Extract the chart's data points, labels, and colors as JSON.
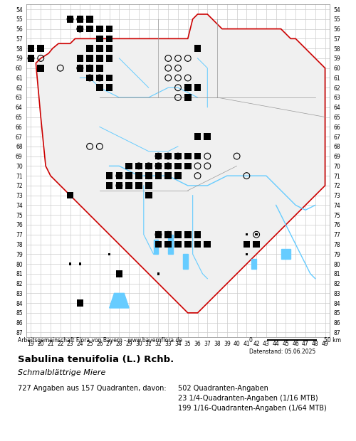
{
  "title_bold": "Sabulina tenuifolia (L.) Rchb.",
  "title_italic": "Schmalblättrige Miere",
  "attribution": "Arbeitsgemeinschaft Flora von Bayern - www.bayernflora.de",
  "scale_label": "0          50 km",
  "date_label": "Datenstand: 05.06.2025",
  "stats_line1": "727 Angaben aus 157 Quadranten, davon:",
  "stats_col2_line1": "502 Quadranten-Angaben",
  "stats_col2_line2": "23 1/4-Quadranten-Angaben (1/16 MTB)",
  "stats_col2_line3": "199 1/16-Quadranten-Angaben (1/64 MTB)",
  "x_min": 19,
  "x_max": 49,
  "y_min": 54,
  "y_max": 87,
  "bg_color": "#ffffff",
  "grid_color": "#cccccc",
  "border_color": "#cc0000",
  "inner_border_color": "#888888",
  "river_color": "#66ccff",
  "lake_color": "#66ccff",
  "filled_square_color": "#000000",
  "open_circle_color": "#000000",
  "filled_circle_color": "#000000",
  "small_square_color": "#000000",
  "map_fill": "#f5f5f5",
  "filled_squares": [
    [
      23,
      55
    ],
    [
      24,
      55
    ],
    [
      25,
      55
    ],
    [
      24,
      56
    ],
    [
      25,
      56
    ],
    [
      26,
      56
    ],
    [
      27,
      56
    ],
    [
      26,
      57
    ],
    [
      27,
      57
    ],
    [
      19,
      58
    ],
    [
      20,
      58
    ],
    [
      25,
      58
    ],
    [
      26,
      58
    ],
    [
      27,
      58
    ],
    [
      36,
      58
    ],
    [
      19,
      59
    ],
    [
      24,
      59
    ],
    [
      25,
      59
    ],
    [
      26,
      59
    ],
    [
      27,
      59
    ],
    [
      20,
      60
    ],
    [
      24,
      60
    ],
    [
      25,
      60
    ],
    [
      26,
      60
    ],
    [
      25,
      61
    ],
    [
      26,
      61
    ],
    [
      27,
      61
    ],
    [
      26,
      62
    ],
    [
      27,
      62
    ],
    [
      35,
      62
    ],
    [
      36,
      62
    ],
    [
      35,
      63
    ],
    [
      36,
      67
    ],
    [
      37,
      67
    ],
    [
      32,
      69
    ],
    [
      33,
      69
    ],
    [
      34,
      69
    ],
    [
      35,
      69
    ],
    [
      36,
      69
    ],
    [
      29,
      70
    ],
    [
      30,
      70
    ],
    [
      31,
      70
    ],
    [
      32,
      70
    ],
    [
      33,
      70
    ],
    [
      34,
      70
    ],
    [
      35,
      70
    ],
    [
      27,
      71
    ],
    [
      28,
      71
    ],
    [
      29,
      71
    ],
    [
      30,
      71
    ],
    [
      31,
      71
    ],
    [
      32,
      71
    ],
    [
      33,
      71
    ],
    [
      34,
      71
    ],
    [
      27,
      72
    ],
    [
      28,
      72
    ],
    [
      29,
      72
    ],
    [
      30,
      72
    ],
    [
      31,
      72
    ],
    [
      23,
      73
    ],
    [
      31,
      73
    ],
    [
      32,
      77
    ],
    [
      33,
      77
    ],
    [
      34,
      77
    ],
    [
      35,
      77
    ],
    [
      36,
      77
    ],
    [
      32,
      78
    ],
    [
      33,
      78
    ],
    [
      34,
      78
    ],
    [
      35,
      78
    ],
    [
      36,
      78
    ],
    [
      37,
      78
    ],
    [
      41,
      78
    ],
    [
      42,
      78
    ],
    [
      28,
      81
    ],
    [
      24,
      84
    ]
  ],
  "open_circles": [
    [
      19,
      59
    ],
    [
      20,
      59
    ],
    [
      22,
      60
    ],
    [
      25,
      61
    ],
    [
      25,
      68
    ],
    [
      26,
      68
    ],
    [
      33,
      59
    ],
    [
      34,
      59
    ],
    [
      35,
      59
    ],
    [
      33,
      60
    ],
    [
      34,
      60
    ],
    [
      33,
      61
    ],
    [
      34,
      61
    ],
    [
      35,
      61
    ],
    [
      34,
      62
    ],
    [
      35,
      62
    ],
    [
      34,
      63
    ],
    [
      36,
      70
    ],
    [
      37,
      70
    ],
    [
      36,
      71
    ],
    [
      41,
      71
    ],
    [
      37,
      69
    ],
    [
      40,
      69
    ],
    [
      32,
      77
    ],
    [
      33,
      77
    ],
    [
      42,
      77
    ]
  ],
  "filled_circles": [
    [
      23,
      55
    ],
    [
      24,
      55
    ],
    [
      24,
      56
    ],
    [
      25,
      58
    ],
    [
      26,
      58
    ],
    [
      25,
      59
    ],
    [
      26,
      59
    ],
    [
      24,
      60
    ],
    [
      25,
      60
    ],
    [
      26,
      61
    ],
    [
      32,
      69
    ],
    [
      33,
      69
    ],
    [
      34,
      69
    ],
    [
      30,
      70
    ],
    [
      31,
      70
    ],
    [
      32,
      70
    ],
    [
      33,
      70
    ],
    [
      28,
      71
    ],
    [
      29,
      71
    ],
    [
      30,
      71
    ],
    [
      31,
      71
    ],
    [
      28,
      72
    ],
    [
      29,
      72
    ]
  ],
  "small_squares": [
    [
      27,
      79
    ],
    [
      41,
      77
    ],
    [
      42,
      77
    ],
    [
      23,
      80
    ],
    [
      24,
      80
    ],
    [
      28,
      81
    ],
    [
      24,
      84
    ],
    [
      32,
      81
    ],
    [
      41,
      79
    ]
  ],
  "plus_marks": [
    [
      32,
      69
    ]
  ],
  "bavaria_outer": [
    [
      19.5,
      58.2
    ],
    [
      19.8,
      59.0
    ],
    [
      19.5,
      59.5
    ],
    [
      19.8,
      60.2
    ],
    [
      20.5,
      60.0
    ],
    [
      21.0,
      60.5
    ],
    [
      21.5,
      60.0
    ],
    [
      21.8,
      60.8
    ],
    [
      22.0,
      61.0
    ],
    [
      22.5,
      60.5
    ],
    [
      23.0,
      61.0
    ],
    [
      23.5,
      60.8
    ],
    [
      24.0,
      61.5
    ],
    [
      24.5,
      61.0
    ],
    [
      25.0,
      61.5
    ],
    [
      25.5,
      61.0
    ],
    [
      26.0,
      62.0
    ],
    [
      26.5,
      62.5
    ],
    [
      26.5,
      63.0
    ],
    [
      26.8,
      63.5
    ],
    [
      26.5,
      64.0
    ],
    [
      26.8,
      64.5
    ],
    [
      26.5,
      65.0
    ],
    [
      26.8,
      65.5
    ],
    [
      26.5,
      66.0
    ],
    [
      26.8,
      66.5
    ],
    [
      27.0,
      67.0
    ],
    [
      27.5,
      67.5
    ],
    [
      27.5,
      68.0
    ],
    [
      28.0,
      68.5
    ],
    [
      28.5,
      69.0
    ],
    [
      28.5,
      70.0
    ],
    [
      28.5,
      71.0
    ],
    [
      28.0,
      72.0
    ],
    [
      27.5,
      73.0
    ],
    [
      27.0,
      74.0
    ],
    [
      27.0,
      75.0
    ],
    [
      27.0,
      76.0
    ],
    [
      27.5,
      77.0
    ],
    [
      27.5,
      78.0
    ],
    [
      27.5,
      79.0
    ],
    [
      27.5,
      80.0
    ],
    [
      27.5,
      81.0
    ],
    [
      27.5,
      82.0
    ],
    [
      27.5,
      83.0
    ],
    [
      27.5,
      84.0
    ],
    [
      27.5,
      85.0
    ],
    [
      28.0,
      85.5
    ],
    [
      28.5,
      86.0
    ],
    [
      29.0,
      86.5
    ],
    [
      30.0,
      86.5
    ],
    [
      31.0,
      86.5
    ],
    [
      32.0,
      86.5
    ],
    [
      33.0,
      86.0
    ],
    [
      34.0,
      86.0
    ],
    [
      35.0,
      86.5
    ],
    [
      36.0,
      86.5
    ],
    [
      37.0,
      86.0
    ],
    [
      38.0,
      85.5
    ],
    [
      39.0,
      85.0
    ],
    [
      40.0,
      84.5
    ],
    [
      41.0,
      84.0
    ],
    [
      42.0,
      83.5
    ],
    [
      43.0,
      83.0
    ],
    [
      44.0,
      82.5
    ],
    [
      45.0,
      82.0
    ],
    [
      45.5,
      81.5
    ],
    [
      46.0,
      81.0
    ],
    [
      46.5,
      80.5
    ],
    [
      47.0,
      80.0
    ],
    [
      47.5,
      79.5
    ],
    [
      48.0,
      79.0
    ],
    [
      48.5,
      78.5
    ],
    [
      49.0,
      78.0
    ],
    [
      49.0,
      77.0
    ],
    [
      49.0,
      76.0
    ],
    [
      49.0,
      75.0
    ],
    [
      49.0,
      74.0
    ],
    [
      49.0,
      73.0
    ],
    [
      49.0,
      72.0
    ],
    [
      49.0,
      71.0
    ],
    [
      49.0,
      70.0
    ],
    [
      49.0,
      69.0
    ],
    [
      49.0,
      68.0
    ],
    [
      48.5,
      67.5
    ],
    [
      48.0,
      67.0
    ],
    [
      47.5,
      66.5
    ],
    [
      47.0,
      66.0
    ],
    [
      46.5,
      65.5
    ],
    [
      46.0,
      65.0
    ],
    [
      45.5,
      64.5
    ],
    [
      45.0,
      64.0
    ],
    [
      44.5,
      63.5
    ],
    [
      44.0,
      63.0
    ],
    [
      43.5,
      62.5
    ],
    [
      43.0,
      62.0
    ],
    [
      42.5,
      61.5
    ],
    [
      42.0,
      61.0
    ],
    [
      41.5,
      60.5
    ],
    [
      41.0,
      60.0
    ],
    [
      40.5,
      59.5
    ],
    [
      40.0,
      59.0
    ],
    [
      39.5,
      58.5
    ],
    [
      39.0,
      58.0
    ],
    [
      38.5,
      57.5
    ],
    [
      38.0,
      57.0
    ],
    [
      37.5,
      56.5
    ],
    [
      37.0,
      56.0
    ],
    [
      36.5,
      55.5
    ],
    [
      36.0,
      55.0
    ],
    [
      35.5,
      54.5
    ],
    [
      35.0,
      54.2
    ],
    [
      34.5,
      54.5
    ],
    [
      34.0,
      55.0
    ],
    [
      33.5,
      55.0
    ],
    [
      33.0,
      55.0
    ],
    [
      32.5,
      55.0
    ],
    [
      32.0,
      55.0
    ],
    [
      31.5,
      55.0
    ],
    [
      31.0,
      55.0
    ],
    [
      30.5,
      55.0
    ],
    [
      30.0,
      55.0
    ],
    [
      29.5,
      55.0
    ],
    [
      29.0,
      55.0
    ],
    [
      28.5,
      55.0
    ],
    [
      28.0,
      55.0
    ],
    [
      27.5,
      55.0
    ],
    [
      27.0,
      55.0
    ],
    [
      26.5,
      55.0
    ],
    [
      26.0,
      55.0
    ],
    [
      25.5,
      55.0
    ],
    [
      25.0,
      55.0
    ],
    [
      24.5,
      55.0
    ],
    [
      24.0,
      55.0
    ],
    [
      23.5,
      55.0
    ],
    [
      23.0,
      55.5
    ],
    [
      22.5,
      56.0
    ],
    [
      22.0,
      56.5
    ],
    [
      21.5,
      57.0
    ],
    [
      21.0,
      57.5
    ],
    [
      20.5,
      58.0
    ],
    [
      20.0,
      58.2
    ],
    [
      19.5,
      58.2
    ]
  ]
}
